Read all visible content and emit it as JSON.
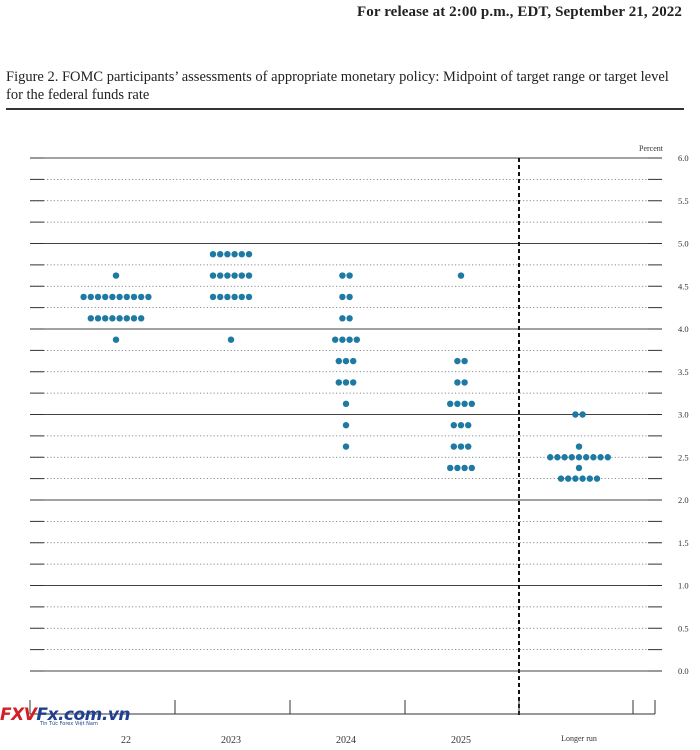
{
  "header": {
    "release_line": "For release at 2:00 p.m., EDT, September 21, 2022"
  },
  "figure": {
    "title": "Figure 2.  FOMC participants’ assessments of appropriate monetary policy:  Midpoint of target range or target level for the federal funds rate"
  },
  "watermark": {
    "logo_a": "FXV",
    "logo_b": "Fx.com.vn",
    "tagline": "Tin Tức Forex Việt Nam"
  },
  "chart_data": {
    "type": "scatter",
    "title": "Figure 2. FOMC participants’ assessments of appropriate monetary policy: Midpoint of target range or target level for the federal funds rate",
    "ylabel": "Percent",
    "ylim": [
      0,
      6
    ],
    "ytick_step": 0.5,
    "yticks": [
      "0.0",
      "0.5",
      "1.0",
      "1.5",
      "2.0",
      "2.5",
      "3.0",
      "3.5",
      "4.0",
      "4.5",
      "5.0",
      "5.5",
      "6.0"
    ],
    "categories": [
      "2022",
      "2023",
      "2024",
      "2025",
      "Longer run"
    ],
    "xtick_labels": [
      "22",
      "2023",
      "2024",
      "2025",
      "Longer run"
    ],
    "grid": "dotted minor 0.25, solid major 1.0",
    "dot_color": "#1f7aa3",
    "dots": [
      {
        "category": "2022",
        "values": [
          {
            "rate": 4.625,
            "count": 1
          },
          {
            "rate": 4.375,
            "count": 10
          },
          {
            "rate": 4.125,
            "count": 8
          },
          {
            "rate": 3.875,
            "count": 1
          }
        ]
      },
      {
        "category": "2023",
        "values": [
          {
            "rate": 4.875,
            "count": 6
          },
          {
            "rate": 4.625,
            "count": 6
          },
          {
            "rate": 4.375,
            "count": 6
          },
          {
            "rate": 3.875,
            "count": 1
          }
        ]
      },
      {
        "category": "2024",
        "values": [
          {
            "rate": 4.625,
            "count": 2
          },
          {
            "rate": 4.375,
            "count": 2
          },
          {
            "rate": 4.125,
            "count": 2
          },
          {
            "rate": 3.875,
            "count": 4
          },
          {
            "rate": 3.625,
            "count": 3
          },
          {
            "rate": 3.375,
            "count": 3
          },
          {
            "rate": 3.125,
            "count": 1
          },
          {
            "rate": 2.875,
            "count": 1
          },
          {
            "rate": 2.625,
            "count": 1
          }
        ]
      },
      {
        "category": "2025",
        "values": [
          {
            "rate": 4.625,
            "count": 1
          },
          {
            "rate": 3.625,
            "count": 2
          },
          {
            "rate": 3.375,
            "count": 2
          },
          {
            "rate": 3.125,
            "count": 4
          },
          {
            "rate": 2.875,
            "count": 3
          },
          {
            "rate": 2.625,
            "count": 3
          },
          {
            "rate": 2.375,
            "count": 4
          }
        ]
      },
      {
        "category": "Longer run",
        "values": [
          {
            "rate": 3.0,
            "count": 2
          },
          {
            "rate": 2.625,
            "count": 1
          },
          {
            "rate": 2.5,
            "count": 9
          },
          {
            "rate": 2.375,
            "count": 1
          },
          {
            "rate": 2.25,
            "count": 6
          }
        ]
      }
    ]
  }
}
